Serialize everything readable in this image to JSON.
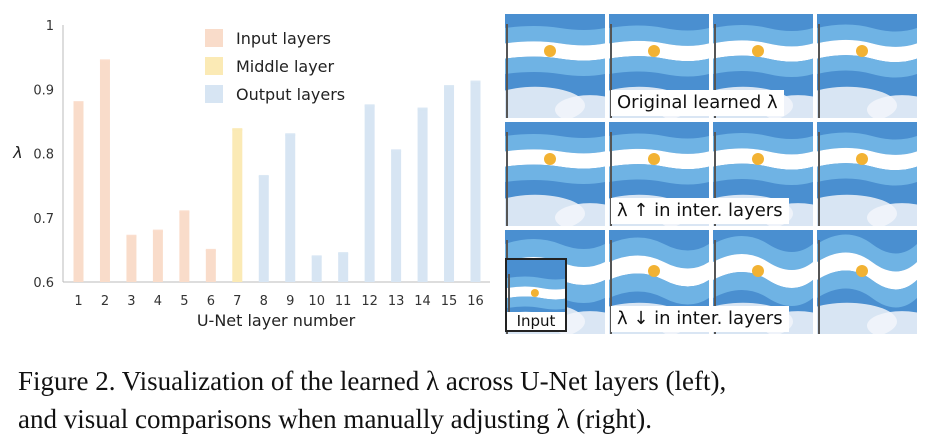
{
  "chart_data": {
    "type": "bar",
    "categories": [
      "1",
      "2",
      "3",
      "4",
      "5",
      "6",
      "7",
      "8",
      "9",
      "10",
      "11",
      "12",
      "13",
      "14",
      "15",
      "16"
    ],
    "values": [
      0.88,
      0.945,
      0.672,
      0.68,
      0.71,
      0.65,
      0.838,
      0.765,
      0.83,
      0.64,
      0.645,
      0.875,
      0.805,
      0.87,
      0.905,
      0.912
    ],
    "groups": [
      "input",
      "input",
      "input",
      "input",
      "input",
      "input",
      "middle",
      "output",
      "output",
      "output",
      "output",
      "output",
      "output",
      "output",
      "output",
      "output"
    ],
    "legend": [
      {
        "key": "input",
        "name": "Input layers",
        "color": "#f9dcca"
      },
      {
        "key": "middle",
        "name": "Middle layer",
        "color": "#fbeab5"
      },
      {
        "key": "output",
        "name": "Output layers",
        "color": "#d7e5f3"
      }
    ],
    "xlabel": "U-Net layer number",
    "ylabel": "λ",
    "ylim": [
      0.6,
      1.0
    ],
    "yticks": [
      "0.6",
      "0.7",
      "0.8",
      "0.9",
      "1"
    ],
    "legend_position": "top-center",
    "grid": false
  },
  "panels": {
    "rows": [
      {
        "label": "Original learned λ"
      },
      {
        "label": "λ ↑ in inter. layers"
      },
      {
        "label": "λ ↓ in inter. layers"
      }
    ],
    "input_label": "Input",
    "colors": {
      "sky": "#4a8fd0",
      "flag_blue": "#6fb3e4",
      "flag_white": "#ffffff",
      "sun": "#f2b233"
    }
  },
  "caption": {
    "line1": "Figure 2. Visualization of the learned λ across U-Net layers (left),",
    "line2": "and visual comparisons when manually adjusting λ (right)."
  }
}
